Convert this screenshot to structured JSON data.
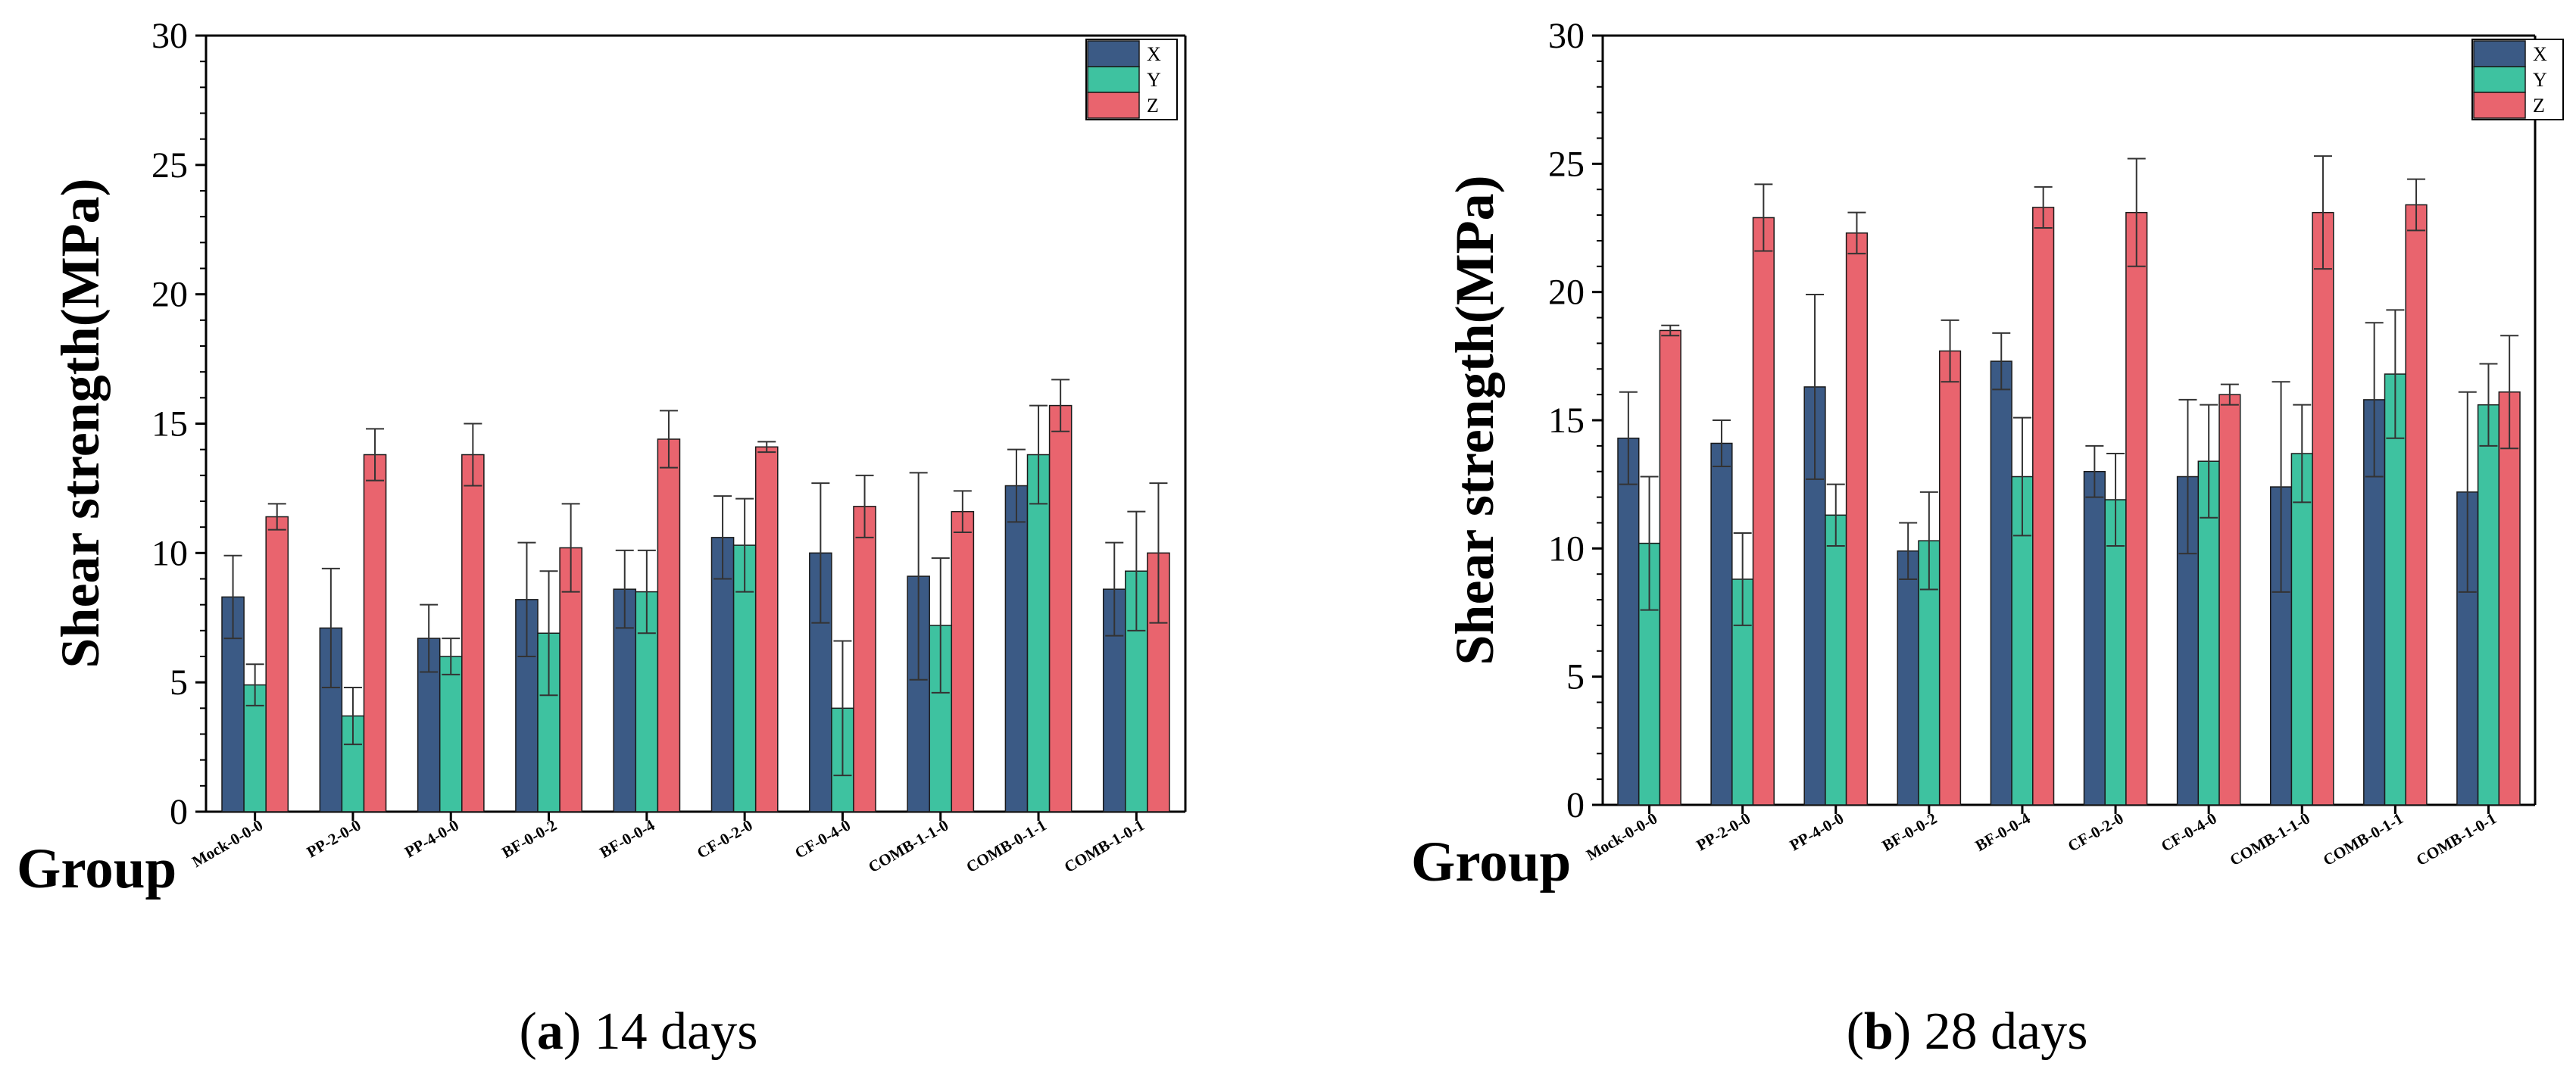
{
  "figure": {
    "caption_a_letter": "a",
    "caption_a_text": " 14 days",
    "caption_b_letter": "b",
    "caption_b_text": " 28 days",
    "group_label": "Group"
  },
  "colors": {
    "X": "#3b5a85",
    "Y": "#3ec2a0",
    "Z": "#e9646e"
  },
  "chart_data": [
    {
      "type": "bar",
      "ylabel": "Shear strength(MPa)",
      "xlabel": "Group",
      "ylim": [
        0,
        30
      ],
      "yticks": [
        0,
        5,
        10,
        15,
        20,
        25,
        30
      ],
      "legend_position": "top-right",
      "categories": [
        "Mock-0-0-0",
        "PP-2-0-0",
        "PP-4-0-0",
        "BF-0-0-2",
        "BF-0-0-4",
        "CF-0-2-0",
        "CF-0-4-0",
        "COMB-1-1-0",
        "COMB-0-1-1",
        "COMB-1-0-1"
      ],
      "series": [
        {
          "name": "X",
          "values": [
            8.3,
            7.1,
            6.7,
            8.2,
            8.6,
            10.6,
            10.0,
            9.1,
            12.6,
            8.6
          ],
          "errors": [
            1.6,
            2.3,
            1.3,
            2.2,
            1.5,
            1.6,
            2.7,
            4.0,
            1.4,
            1.8
          ]
        },
        {
          "name": "Y",
          "values": [
            4.9,
            3.7,
            6.0,
            6.9,
            8.5,
            10.3,
            4.0,
            7.2,
            13.8,
            9.3
          ],
          "errors": [
            0.8,
            1.1,
            0.7,
            2.4,
            1.6,
            1.8,
            2.6,
            2.6,
            1.9,
            2.3
          ]
        },
        {
          "name": "Z",
          "values": [
            11.4,
            13.8,
            13.8,
            10.2,
            14.4,
            14.1,
            11.8,
            11.6,
            15.7,
            10.0
          ],
          "errors": [
            0.5,
            1.0,
            1.2,
            1.7,
            1.1,
            0.2,
            1.2,
            0.8,
            1.0,
            2.7
          ]
        }
      ]
    },
    {
      "type": "bar",
      "ylabel": "Shear strength(MPa)",
      "xlabel": "Group",
      "ylim": [
        0,
        30
      ],
      "yticks": [
        0,
        5,
        10,
        15,
        20,
        25,
        30
      ],
      "legend_position": "top-right",
      "categories": [
        "Mock-0-0-0",
        "PP-2-0-0",
        "PP-4-0-0",
        "BF-0-0-2",
        "BF-0-0-4",
        "CF-0-2-0",
        "CF-0-4-0",
        "COMB-1-1-0",
        "COMB-0-1-1",
        "COMB-1-0-1"
      ],
      "series": [
        {
          "name": "X",
          "values": [
            14.3,
            14.1,
            16.3,
            9.9,
            17.3,
            13.0,
            12.8,
            12.4,
            15.8,
            12.2
          ],
          "errors": [
            1.8,
            0.9,
            3.6,
            1.1,
            1.1,
            1.0,
            3.0,
            4.1,
            3.0,
            3.9
          ]
        },
        {
          "name": "Y",
          "values": [
            10.2,
            8.8,
            11.3,
            10.3,
            12.8,
            11.9,
            13.4,
            13.7,
            16.8,
            15.6
          ],
          "errors": [
            2.6,
            1.8,
            1.2,
            1.9,
            2.3,
            1.8,
            2.2,
            1.9,
            2.5,
            1.6
          ]
        },
        {
          "name": "Z",
          "values": [
            18.5,
            22.9,
            22.3,
            17.7,
            23.3,
            23.1,
            16.0,
            23.1,
            23.4,
            16.1
          ],
          "errors": [
            0.2,
            1.3,
            0.8,
            1.2,
            0.8,
            2.1,
            0.4,
            2.2,
            1.0,
            2.2
          ]
        }
      ]
    }
  ]
}
